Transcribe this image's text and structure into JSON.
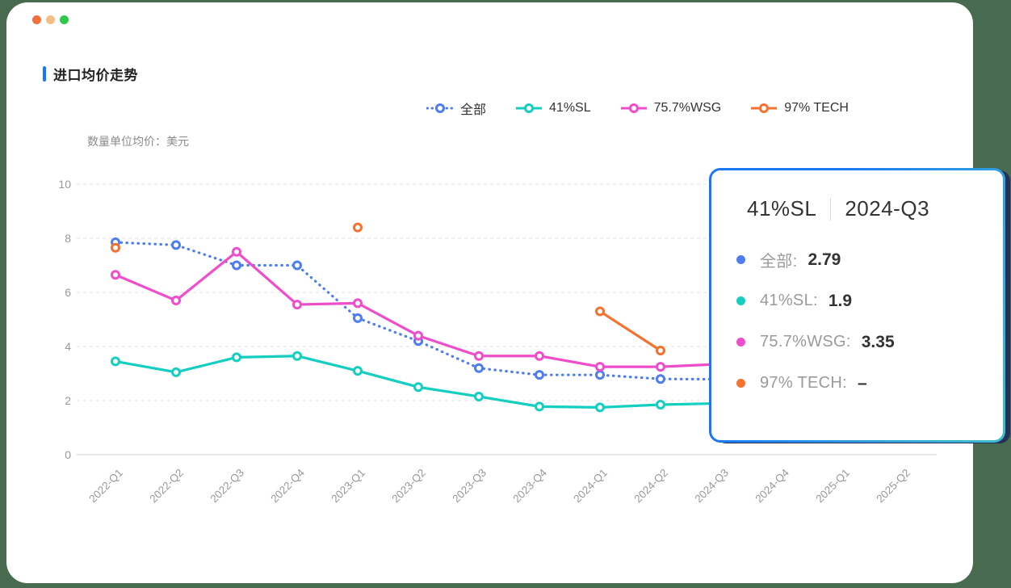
{
  "window": {
    "controls": [
      {
        "name": "close",
        "color": "#F0703F"
      },
      {
        "name": "minimize",
        "color": "#F5BE85"
      },
      {
        "name": "zoom",
        "color": "#2FC84B"
      }
    ]
  },
  "page": {
    "background_color": "#486A4F",
    "card_color": "#FFFFFF"
  },
  "header": {
    "title": "进口均价走势",
    "accent_color": "#1677FF"
  },
  "chart": {
    "unit_note": "数量单位均价：美元"
  },
  "chart_data": {
    "type": "line",
    "title": "进口均价走势",
    "unit_label": "数量单位均价：美元",
    "categories": [
      "2022-Q1",
      "2022-Q2",
      "2022-Q3",
      "2022-Q4",
      "2023-Q1",
      "2023-Q2",
      "2023-Q3",
      "2023-Q4",
      "2024-Q1",
      "2024-Q2",
      "2024-Q3",
      "2024-Q4",
      "2025-Q1",
      "2025-Q2"
    ],
    "series": [
      {
        "name": "全部",
        "color": "#4D7DF0",
        "line_style": "dotted",
        "marker": "empty-circle",
        "values": [
          7.85,
          7.75,
          7.0,
          7.0,
          5.05,
          4.2,
          3.2,
          2.95,
          2.95,
          2.8,
          2.79,
          null,
          null,
          null
        ]
      },
      {
        "name": "41%SL",
        "color": "#14CEC0",
        "line_style": "solid",
        "marker": "empty-circle",
        "values": [
          3.45,
          3.05,
          3.6,
          3.65,
          3.1,
          2.5,
          2.15,
          1.78,
          1.75,
          1.85,
          1.9,
          null,
          null,
          null
        ]
      },
      {
        "name": "75.7%WSG",
        "color": "#EE4ECB",
        "line_style": "solid",
        "marker": "empty-circle",
        "values": [
          6.65,
          5.7,
          7.5,
          5.55,
          5.6,
          4.4,
          3.65,
          3.65,
          3.25,
          3.25,
          3.35,
          null,
          null,
          null
        ]
      },
      {
        "name": "97% TECH",
        "color": "#F5712E",
        "line_style": "solid",
        "marker": "empty-circle",
        "values": [
          7.65,
          null,
          null,
          null,
          8.4,
          null,
          null,
          null,
          5.3,
          3.85,
          null,
          null,
          null,
          null
        ]
      }
    ],
    "ylim": [
      0,
      10
    ],
    "yticks": [
      0,
      2,
      4,
      6,
      8,
      10
    ],
    "grid": "horizontal-dashed",
    "legend_position": "top-right",
    "x_label_rotation": 45
  },
  "legend": {
    "items": [
      {
        "label": "全部"
      },
      {
        "label": "41%SL"
      },
      {
        "label": "75.7%WSG"
      },
      {
        "label": "97% TECH"
      }
    ]
  },
  "tooltip": {
    "series_name": "41%SL",
    "category": "2024-Q3",
    "border_gradient": [
      "#1B78F5",
      "#3EBFCC"
    ],
    "shadow_color": "#273059",
    "rows": [
      {
        "label": "全部:",
        "value": "2.79",
        "color": "#4D7DF0"
      },
      {
        "label": "41%SL:",
        "value": "1.9",
        "color": "#14CEC0"
      },
      {
        "label": "75.7%WSG:",
        "value": "3.35",
        "color": "#EE4ECB"
      },
      {
        "label": "97% TECH:",
        "value": "–",
        "color": "#F5712E"
      }
    ]
  }
}
